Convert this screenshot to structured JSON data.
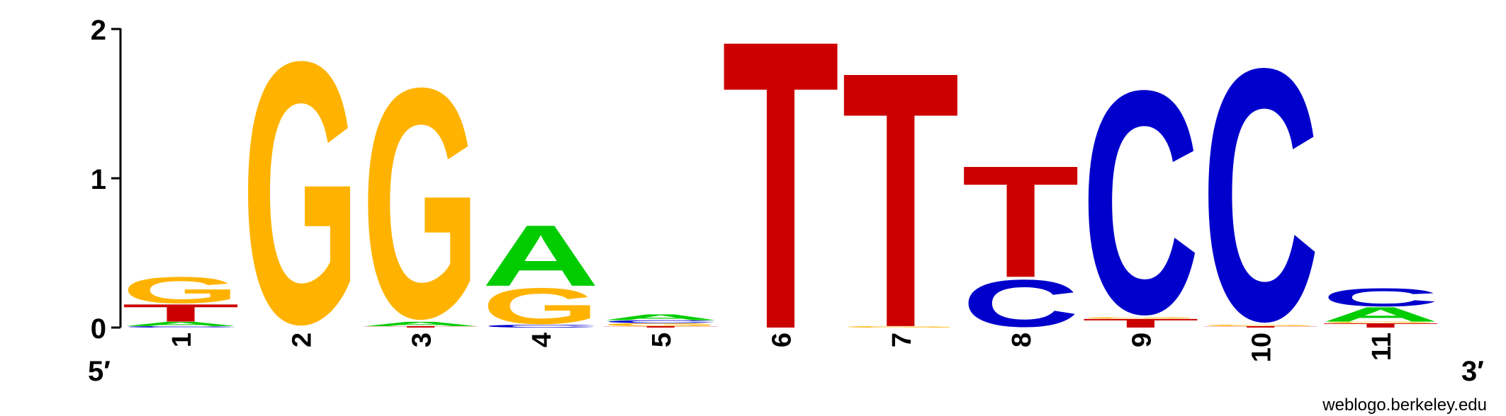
{
  "chart_data": {
    "type": "sequence-logo",
    "y_axis": {
      "ylim": [
        0,
        2
      ],
      "ticks": [
        "0",
        "1",
        "2"
      ]
    },
    "x_axis": {
      "ends": {
        "start": "5′",
        "end": "3′"
      }
    },
    "colors": {
      "A": "#00cc00",
      "C": "#0000cc",
      "G": "#ffb300",
      "T": "#cc0000"
    },
    "positions": [
      {
        "label": "1",
        "stack": [
          {
            "base": "C",
            "bits": 0.01
          },
          {
            "base": "A",
            "bits": 0.03
          },
          {
            "base": "T",
            "bits": 0.12
          },
          {
            "base": "G",
            "bits": 0.19
          }
        ]
      },
      {
        "label": "2",
        "stack": [
          {
            "base": "G",
            "bits": 1.89
          }
        ]
      },
      {
        "label": "3",
        "stack": [
          {
            "base": "T",
            "bits": 0.01
          },
          {
            "base": "A",
            "bits": 0.03
          },
          {
            "base": "G",
            "bits": 1.66
          }
        ]
      },
      {
        "label": "4",
        "stack": [
          {
            "base": "C",
            "bits": 0.02
          },
          {
            "base": "G",
            "bits": 0.26
          },
          {
            "base": "A",
            "bits": 0.42
          }
        ]
      },
      {
        "label": "5",
        "stack": [
          {
            "base": "T",
            "bits": 0.01
          },
          {
            "base": "G",
            "bits": 0.02
          },
          {
            "base": "C",
            "bits": 0.02
          },
          {
            "base": "A",
            "bits": 0.04
          }
        ]
      },
      {
        "label": "6",
        "stack": [
          {
            "base": "T",
            "bits": 1.99
          }
        ]
      },
      {
        "label": "7",
        "stack": [
          {
            "base": "G",
            "bits": 0.01
          },
          {
            "base": "T",
            "bits": 1.76
          }
        ]
      },
      {
        "label": "8",
        "stack": [
          {
            "base": "C",
            "bits": 0.34
          },
          {
            "base": "T",
            "bits": 0.77
          }
        ]
      },
      {
        "label": "9",
        "stack": [
          {
            "base": "T",
            "bits": 0.06
          },
          {
            "base": "G",
            "bits": 0.01
          },
          {
            "base": "C",
            "bits": 1.61
          }
        ]
      },
      {
        "label": "10",
        "stack": [
          {
            "base": "T",
            "bits": 0.01
          },
          {
            "base": "G",
            "bits": 0.01
          },
          {
            "base": "C",
            "bits": 1.82
          }
        ]
      },
      {
        "label": "11",
        "stack": [
          {
            "base": "T",
            "bits": 0.03
          },
          {
            "base": "G",
            "bits": 0.01
          },
          {
            "base": "A",
            "bits": 0.1
          },
          {
            "base": "C",
            "bits": 0.13
          }
        ]
      }
    ]
  },
  "footer": {
    "credit": "weblogo.berkeley.edu"
  }
}
